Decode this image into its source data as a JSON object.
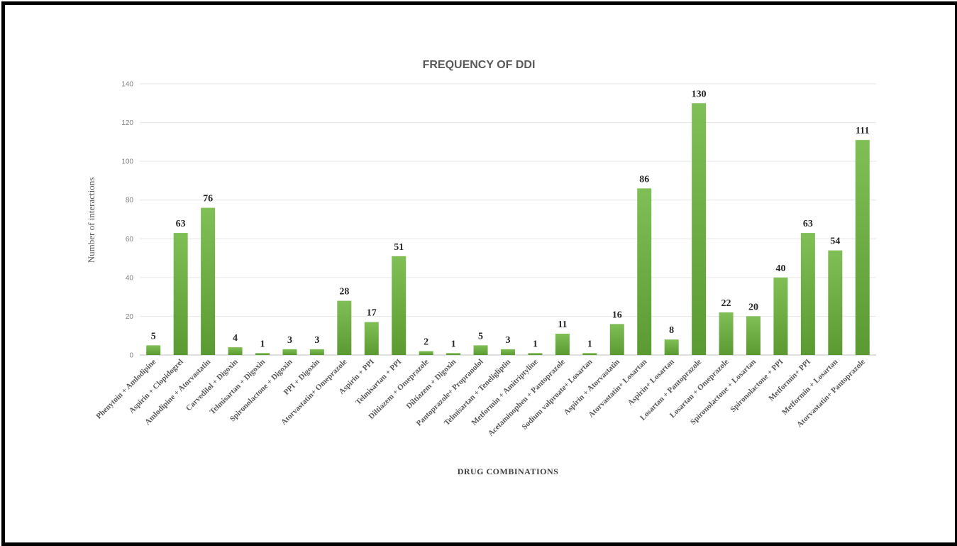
{
  "chart_data": {
    "type": "bar",
    "title": "FREQUENCY OF DDI",
    "xlabel": "DRUG COMBINATIONS",
    "ylabel": "Number of interactions",
    "ylim": [
      0,
      140
    ],
    "yticks": [
      0,
      20,
      40,
      60,
      80,
      100,
      120,
      140
    ],
    "grid": true,
    "bar_color": "#70ad47",
    "categories": [
      "Phenytoin + Amlodipine",
      "Aspirin + Clopidogrel",
      "Amlodipine + Atorvastatin",
      "Carvedilol + Digoxin",
      "Telmisartan + Digoxin",
      "Spironolactone + Digoxin",
      "PPI + Digoxin",
      "Atorvastatin+ Omeprazole",
      "Aspirin + PPI",
      "Telmisartan + PPI",
      "Diltiazem + Omeprazole",
      "Diltiazem + Digoxin",
      "Pantoprazole+ Propranolol",
      "Telmisartan + Teneligliptin",
      "Metformin + Amitriptyline",
      "Acetaminophen + Pantoprazole",
      "Sodium valproate+ Losartan",
      "Aspirin + Atorvastatin",
      "Atorvastatin+ Losartan",
      "Aspirin+ Losartan",
      "Losartan + Pantoprazole",
      "Losartan + Omeprazole",
      "Spironolactone + Losartan",
      "Spironolactone + PPI",
      "Metformin+ PPI",
      "Metformin + Losartan",
      "Atorvastatin+ Pantoprazole"
    ],
    "values": [
      5,
      63,
      76,
      4,
      1,
      3,
      3,
      28,
      17,
      51,
      2,
      1,
      5,
      3,
      1,
      11,
      1,
      16,
      86,
      8,
      130,
      22,
      20,
      40,
      63,
      54,
      111
    ]
  }
}
